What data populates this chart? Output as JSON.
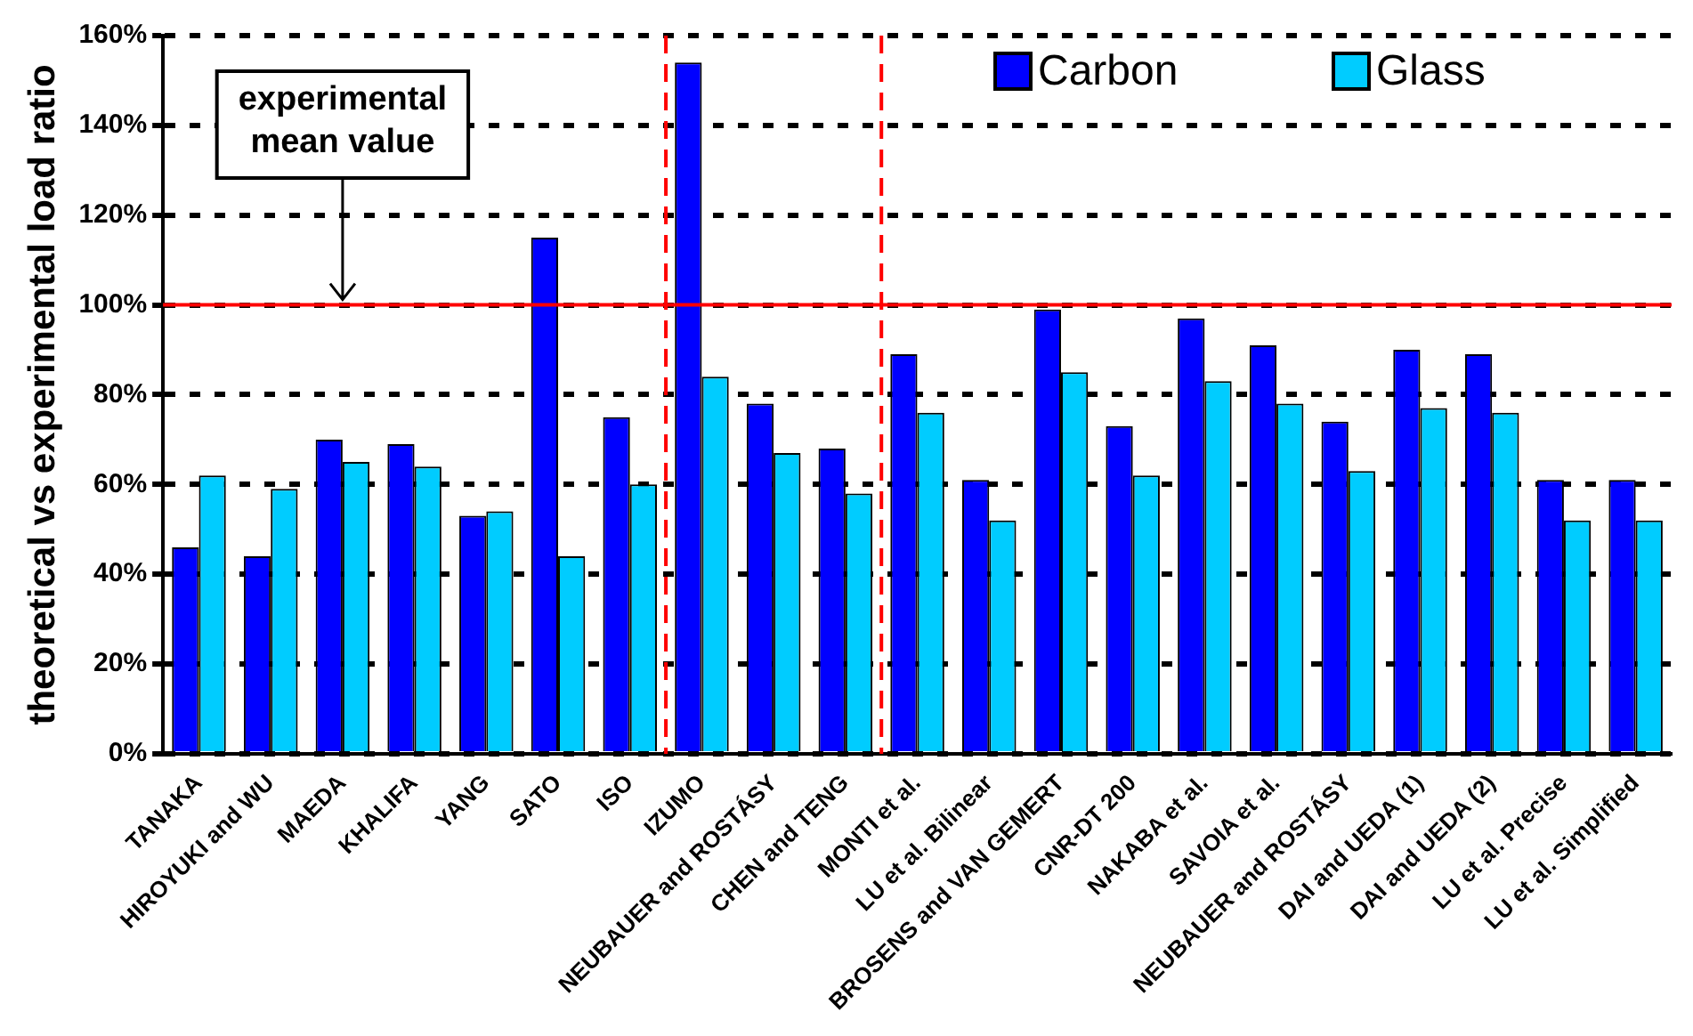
{
  "chart_data": {
    "type": "bar",
    "ylabel": "theoretical vs experimental load ratio",
    "categories": [
      "TANAKA",
      "HIROYUKI and WU",
      "MAEDA",
      "KHALIFA",
      "YANG",
      "SATO",
      "ISO",
      "IZUMO",
      "NEUBAUER and ROSTÁSY",
      "CHEN and TENG",
      "MONTI et al.",
      "LU et al. Bilinear",
      "BROSENS and VAN GEMERT",
      "CNR-DT 200",
      "NAKABA et al.",
      "SAVOIA et al.",
      "NEUBAUER and ROSTÁSY",
      "DAI and UEDA (1)",
      "DAI and UEDA (2)",
      "LU et al. Precise",
      "LU et al. Simplified"
    ],
    "series": [
      {
        "name": "Carbon",
        "color": "#0000ff",
        "values": [
          46,
          44,
          70,
          69,
          53,
          115,
          75,
          154,
          78,
          68,
          89,
          61,
          99,
          73,
          97,
          91,
          74,
          90,
          89,
          61,
          61
        ]
      },
      {
        "name": "Glass",
        "color": "#00ccff",
        "values": [
          62,
          59,
          65,
          64,
          54,
          44,
          60,
          84,
          67,
          58,
          76,
          52,
          85,
          62,
          83,
          78,
          63,
          77,
          76,
          52,
          52
        ]
      }
    ],
    "ylim": [
      0,
      160
    ],
    "yticks": [
      {
        "value": 0,
        "label": "0%"
      },
      {
        "value": 20,
        "label": "20%"
      },
      {
        "value": 40,
        "label": "40%"
      },
      {
        "value": 60,
        "label": "60%"
      },
      {
        "value": 80,
        "label": "80%"
      },
      {
        "value": 100,
        "label": "100%"
      },
      {
        "value": 120,
        "label": "120%"
      },
      {
        "value": 140,
        "label": "140%"
      },
      {
        "value": 160,
        "label": "160%"
      }
    ],
    "grid": "y",
    "legend": "top right",
    "ref_lines": [
      {
        "axis": "y",
        "value": 100,
        "color": "#ff0000",
        "line_style": "solid"
      }
    ],
    "annotations": [
      {
        "text": "experimental mean value",
        "x": "MAEDA",
        "y": 100
      }
    ]
  }
}
